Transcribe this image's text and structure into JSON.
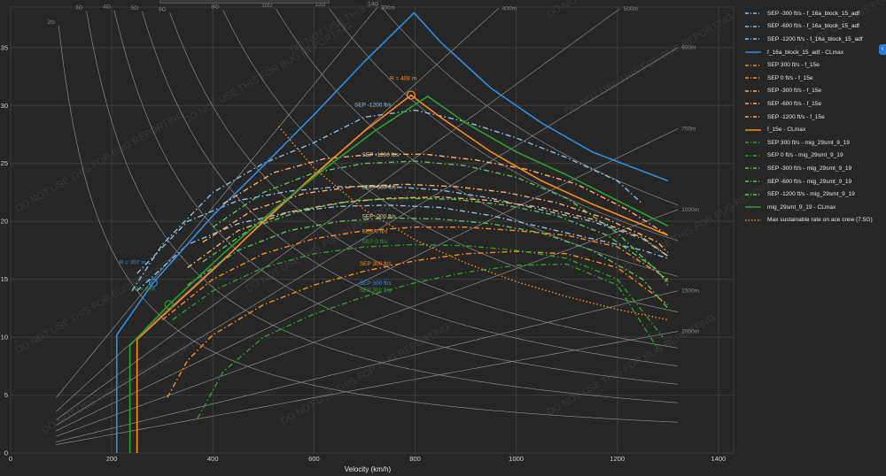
{
  "chart_data": {
    "type": "line",
    "xlabel": "Velocity (km/h)",
    "ylabel": "",
    "xlim": [
      0,
      1430
    ],
    "ylim": [
      0,
      38.5
    ],
    "xticks": [
      "0",
      "200",
      "400",
      "600",
      "800",
      "1000",
      "1200",
      "1400"
    ],
    "yticks": [
      "0",
      "5",
      "10",
      "15",
      "20",
      "25",
      "30",
      "35"
    ],
    "grid": true,
    "legend_position": "right",
    "watermark": "DO NOT USE THIS FOR BUG REPORTING",
    "g_lines": [
      {
        "label": "2G",
        "g": 2
      },
      {
        "label": "3G",
        "g": 3
      },
      {
        "label": "4G",
        "g": 4
      },
      {
        "label": "5G",
        "g": 5
      },
      {
        "label": "6G",
        "g": 6
      },
      {
        "label": "8G",
        "g": 8
      },
      {
        "label": "10G",
        "g": 10
      },
      {
        "label": "12G",
        "g": 12
      },
      {
        "label": "14G",
        "g": 14
      }
    ],
    "radius_lines": [
      {
        "label": "300m",
        "r": 300
      },
      {
        "label": "400m",
        "r": 400
      },
      {
        "label": "500m",
        "r": 500
      },
      {
        "label": "600m",
        "r": 600
      },
      {
        "label": "750m",
        "r": 750
      },
      {
        "label": "1000m",
        "r": 1000
      },
      {
        "label": "1500m",
        "r": 1500
      },
      {
        "label": "2000m",
        "r": 2000
      }
    ],
    "annotations": [
      {
        "text": "R = 408 m",
        "x": 750,
        "y": 32.2,
        "color": "#ff8c1a"
      },
      {
        "text": "R = 307 m",
        "x": 215,
        "y": 16.3,
        "color": "#2f8fe0"
      },
      {
        "text": "R = 3 m",
        "x": 245,
        "y": 14.0,
        "color": "#2ca02c"
      },
      {
        "text": "SEP -1200 ft/s",
        "x": 680,
        "y": 29.9,
        "color": "#8fbfe0"
      },
      {
        "text": "SEP -1200 ft/s",
        "x": 695,
        "y": 25.6,
        "color": "#d9d9a0"
      },
      {
        "text": "SEP -600 ft/s",
        "x": 695,
        "y": 22.8,
        "color": "#d9d9a0"
      },
      {
        "text": "SEP -300 ft/s",
        "x": 695,
        "y": 20.3,
        "color": "#d9d9a0"
      },
      {
        "text": "SEP 0 ft/s",
        "x": 695,
        "y": 19.0,
        "color": "#ff8c1a"
      },
      {
        "text": "SEP 0 ft/s",
        "x": 695,
        "y": 18.1,
        "color": "#2ca02c"
      },
      {
        "text": "SEP 300 ft/s",
        "x": 690,
        "y": 16.2,
        "color": "#ff8c1a"
      },
      {
        "text": "SEP 300 ft/s",
        "x": 690,
        "y": 14.5,
        "color": "#2f8fe0"
      },
      {
        "text": "SEP 300 ft/s",
        "x": 690,
        "y": 13.9,
        "color": "#2ca02c"
      }
    ],
    "markers": [
      {
        "x": 792,
        "y": 30.9,
        "color": "#ff8c1a"
      },
      {
        "x": 282,
        "y": 14.7,
        "color": "#2f8fe0"
      },
      {
        "x": 313,
        "y": 12.8,
        "color": "#2ca02c"
      }
    ],
    "series": [
      {
        "name": "SEP -300 ft/s - f_16a_block_15_adf",
        "color": "#8fbfe0",
        "dash": "dashdot",
        "x": [
          250,
          350,
          450,
          550,
          650,
          750,
          850,
          950,
          1050,
          1150,
          1250,
          1300
        ],
        "y": [
          14.0,
          18.0,
          19.8,
          20.8,
          21.3,
          21.4,
          21.2,
          20.5,
          19.5,
          18.5,
          17.5,
          16.8
        ]
      },
      {
        "name": "SEP -600 ft/s - f_16a_block_15_adf",
        "color": "#8fbfe0",
        "dash": "dashdot",
        "x": [
          250,
          350,
          450,
          550,
          650,
          750,
          850,
          950,
          1050,
          1150,
          1250,
          1300
        ],
        "y": [
          15.5,
          20.0,
          21.8,
          22.6,
          23.0,
          23.0,
          22.7,
          22.0,
          21.0,
          20.0,
          18.5,
          17.0
        ]
      },
      {
        "name": "SEP -1200 ft/s - f_16a_block_15_adf",
        "color": "#8fbfe0",
        "dash": "dashdot",
        "x": [
          240,
          300,
          400,
          500,
          600,
          700,
          800,
          900,
          1000,
          1100,
          1200,
          1250
        ],
        "y": [
          14.0,
          18.0,
          22.5,
          25.0,
          26.8,
          29.0,
          29.6,
          28.6,
          27.2,
          25.5,
          23.5,
          21.5
        ]
      },
      {
        "name": "f_16a_block_15_adf - CLmax",
        "color": "#2f8fe0",
        "dash": "solid",
        "x": [
          210,
          210,
          282,
          400,
          500,
          600,
          700,
          798,
          850,
          950,
          1050,
          1150,
          1300
        ],
        "y": [
          0,
          10.2,
          14.7,
          20.5,
          24.8,
          29.2,
          33.8,
          38.0,
          35.5,
          31.5,
          28.5,
          26.0,
          23.5
        ]
      },
      {
        "name": "SEP 300 ft/s - f_15e",
        "color": "#ff8c1a",
        "dash": "dashdot",
        "x": [
          310,
          350,
          400,
          500,
          600,
          700,
          800,
          900,
          1000,
          1100,
          1200,
          1300
        ],
        "y": [
          4.8,
          8.0,
          10.2,
          12.8,
          14.5,
          15.7,
          16.6,
          17.2,
          17.4,
          17.2,
          16.0,
          12.8
        ]
      },
      {
        "name": "SEP 0 ft/s - f_15e",
        "color": "#ff8c1a",
        "dash": "dashdot",
        "x": [
          300,
          400,
          500,
          600,
          700,
          800,
          900,
          1000,
          1100,
          1200,
          1300
        ],
        "y": [
          11.5,
          15.0,
          17.2,
          18.5,
          19.2,
          19.5,
          19.5,
          19.2,
          18.8,
          17.8,
          15.0
        ]
      },
      {
        "name": "SEP -300 ft/s - f_15e",
        "color": "#ffb066",
        "dash": "dashdot",
        "x": [
          350,
          450,
          550,
          650,
          750,
          850,
          950,
          1050,
          1150,
          1250,
          1300
        ],
        "y": [
          16.0,
          19.2,
          20.8,
          21.6,
          22.0,
          22.1,
          21.8,
          21.2,
          20.2,
          18.6,
          17.0
        ]
      },
      {
        "name": "SEP -600 ft/s - f_15e",
        "color": "#ffb066",
        "dash": "dashdot",
        "x": [
          380,
          480,
          580,
          680,
          780,
          880,
          980,
          1080,
          1180,
          1280,
          1300
        ],
        "y": [
          18.2,
          21.0,
          22.4,
          23.0,
          23.2,
          23.0,
          22.5,
          21.6,
          20.2,
          18.2,
          17.3
        ]
      },
      {
        "name": "SEP -1200 ft/s - f_15e",
        "color": "#ffb066",
        "dash": "dashdot",
        "x": [
          420,
          520,
          620,
          720,
          820,
          920,
          1020,
          1120,
          1220,
          1300
        ],
        "y": [
          21.5,
          24.2,
          25.4,
          25.8,
          25.8,
          25.3,
          24.5,
          23.2,
          21.0,
          18.8
        ]
      },
      {
        "name": "f_15e - CLmax",
        "color": "#ff8c1a",
        "dash": "solid",
        "x": [
          250,
          250,
          400,
          500,
          600,
          700,
          792,
          850,
          950,
          1050,
          1150,
          1300
        ],
        "y": [
          0,
          9.8,
          15.8,
          20.0,
          24.0,
          27.8,
          30.9,
          29.0,
          26.0,
          23.5,
          21.5,
          18.8
        ]
      },
      {
        "name": "SEP 300 ft/s - mig_29smt_9_19",
        "color": "#2ca02c",
        "dash": "dashdot",
        "x": [
          370,
          420,
          500,
          600,
          700,
          800,
          900,
          1000,
          1100,
          1200,
          1280
        ],
        "y": [
          3.0,
          7.0,
          10.0,
          12.0,
          13.5,
          14.7,
          15.6,
          16.2,
          16.3,
          14.5,
          9.0
        ]
      },
      {
        "name": "SEP 0 ft/s - mig_29smt_9_19",
        "color": "#2ca02c",
        "dash": "dashdot",
        "x": [
          320,
          400,
          500,
          600,
          700,
          800,
          900,
          1000,
          1100,
          1200,
          1290
        ],
        "y": [
          11.5,
          14.0,
          16.0,
          17.2,
          17.8,
          18.0,
          17.9,
          17.5,
          16.8,
          15.0,
          10.0
        ]
      },
      {
        "name": "SEP -300 ft/s - mig_29smt_9_19",
        "color": "#5fbf5f",
        "dash": "dashdot",
        "x": [
          350,
          450,
          550,
          650,
          750,
          850,
          950,
          1050,
          1150,
          1250,
          1300
        ],
        "y": [
          14.5,
          17.5,
          19.2,
          20.0,
          20.3,
          20.2,
          19.8,
          19.0,
          17.5,
          15.0,
          12.5
        ]
      },
      {
        "name": "SEP -600 ft/s - mig_29smt_9_19",
        "color": "#5fbf5f",
        "dash": "dashdot",
        "x": [
          380,
          480,
          580,
          680,
          780,
          880,
          980,
          1080,
          1180,
          1280,
          1300
        ],
        "y": [
          16.5,
          19.5,
          21.0,
          21.8,
          22.0,
          21.9,
          21.4,
          20.5,
          18.8,
          15.8,
          14.5
        ]
      },
      {
        "name": "SEP -1200 ft/s - mig_29smt_9_19",
        "color": "#5fbf5f",
        "dash": "dashdot",
        "x": [
          400,
          500,
          600,
          700,
          800,
          900,
          1000,
          1100,
          1200,
          1300
        ],
        "y": [
          19.5,
          22.5,
          24.2,
          25.0,
          25.2,
          24.8,
          23.8,
          22.0,
          19.0,
          14.8
        ]
      },
      {
        "name": "mig_29smt_9_19 - CLmax",
        "color": "#2ca02c",
        "dash": "solid",
        "x": [
          236,
          236,
          313,
          420,
          520,
          620,
          720,
          825,
          900,
          1000,
          1100,
          1200,
          1300
        ],
        "y": [
          0,
          9.3,
          12.8,
          17.2,
          21.0,
          24.5,
          27.8,
          30.8,
          28.5,
          26.0,
          24.0,
          21.8,
          19.6
        ]
      },
      {
        "name": "Max sustainable rate on ace crew (7.5G)",
        "color": "#ff8c1a",
        "dash": "dot",
        "x": [
          530,
          600,
          700,
          800,
          900,
          1000,
          1100,
          1200,
          1300
        ],
        "y": [
          28.2,
          24.6,
          21.0,
          18.4,
          16.4,
          14.8,
          13.5,
          12.4,
          11.5
        ]
      }
    ]
  }
}
